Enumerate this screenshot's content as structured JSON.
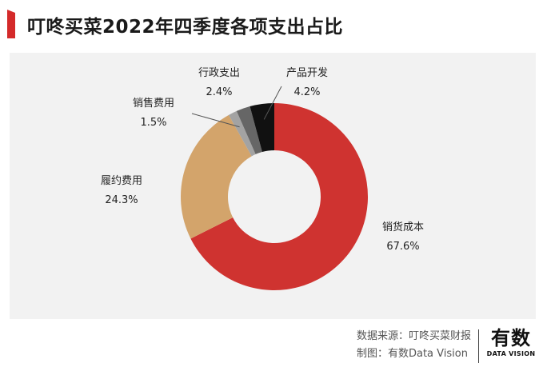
{
  "colors": {
    "accent": "#d42a2a",
    "panel_bg": "#f2f2f2"
  },
  "chart_data": {
    "type": "pie",
    "variant": "donut",
    "title": "叮咚买菜2022年四季度各项支出占比",
    "categories": [
      "销货成本",
      "履约费用",
      "销售费用",
      "行政支出",
      "产品开发"
    ],
    "values": [
      67.6,
      24.3,
      1.5,
      2.4,
      4.2
    ],
    "value_labels": [
      "67.6%",
      "24.3%",
      "1.5%",
      "2.4%",
      "4.2%"
    ],
    "colors": [
      "#cf3330",
      "#d3a46b",
      "#a3a3a3",
      "#666666",
      "#111111"
    ],
    "legend": "none"
  },
  "footer": {
    "source": "数据来源：叮咚买菜财报",
    "credit": "制图：有数Data Vision",
    "brand_name": "有数",
    "brand_sub": "DATA VISION"
  }
}
